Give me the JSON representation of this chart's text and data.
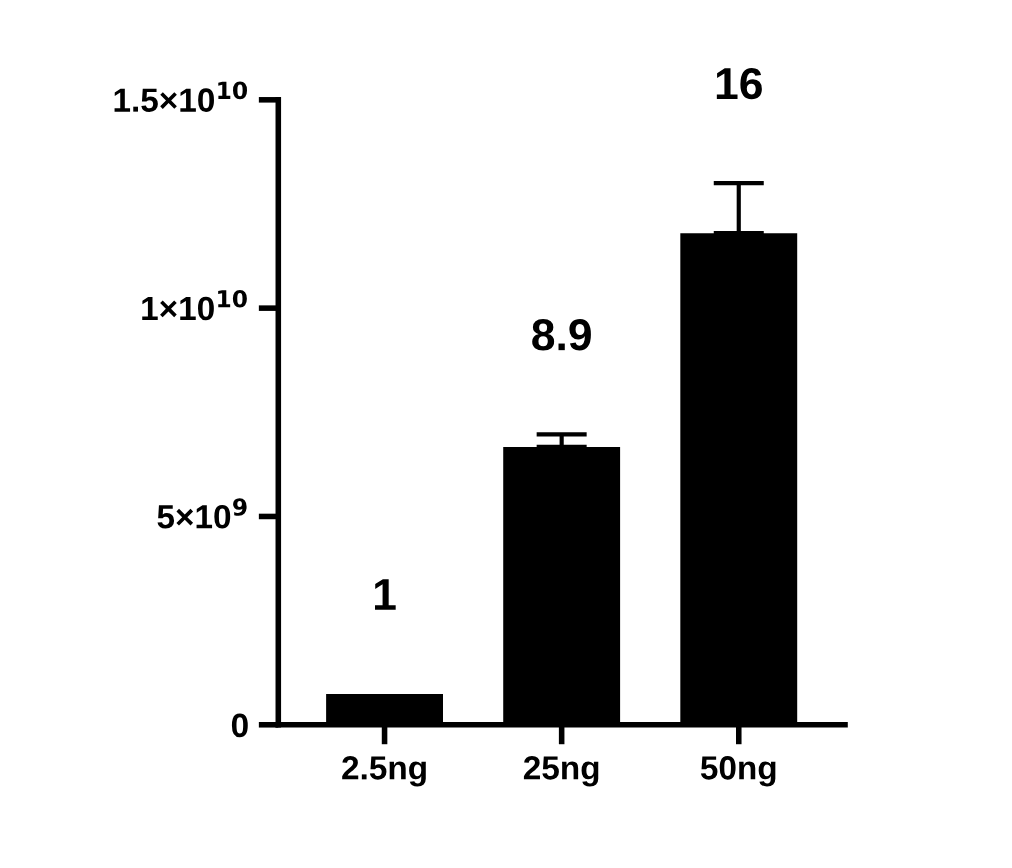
{
  "chart_data": {
    "type": "bar",
    "categories": [
      "2.5ng",
      "25ng",
      "50ng"
    ],
    "values": [
      740000000,
      6670000000,
      11800000000
    ],
    "errors": [
      null,
      [
        6670000000,
        6970000000
      ],
      [
        11800000000,
        13000000000
      ]
    ],
    "color": "#000000",
    "ylim": [
      0,
      15000000000
    ],
    "yticks": [
      0,
      {
        "value": 5000000000,
        "label": "5×10$^{9}$"
      },
      {
        "value": 10000000000,
        "label": "1×10$^{10}$"
      },
      {
        "value": 15000000000,
        "label": "1.5×10$^{10}$"
      }
    ],
    "annotations": [
      "1",
      "8.9",
      "16"
    ],
    "grid": false,
    "legend": false
  }
}
